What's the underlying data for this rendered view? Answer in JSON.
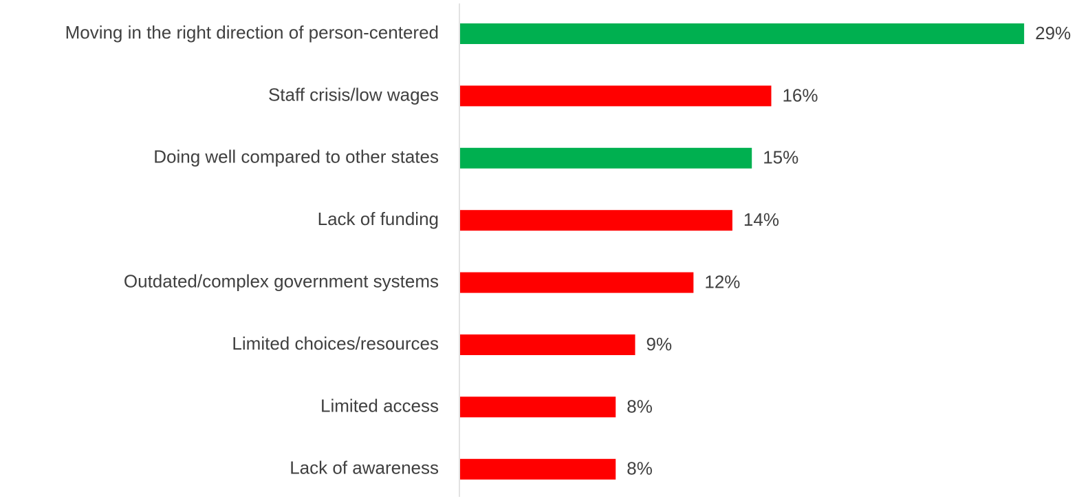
{
  "chart_data": {
    "type": "barh",
    "categories": [
      "Moving in the right direction of person-centered",
      "Staff crisis/low wages",
      "Doing well compared to other states",
      "Lack of funding",
      "Outdated/complex government systems",
      "Limited choices/resources",
      "Limited access",
      "Lack of awareness"
    ],
    "values": [
      29,
      16,
      15,
      14,
      12,
      9,
      8,
      8
    ],
    "value_labels": [
      "29%",
      "16%",
      "15%",
      "14%",
      "12%",
      "9%",
      "8%",
      "8%"
    ],
    "colors": [
      "#00b050",
      "#ff0000",
      "#00b050",
      "#ff0000",
      "#ff0000",
      "#ff0000",
      "#ff0000",
      "#ff0000"
    ]
  }
}
